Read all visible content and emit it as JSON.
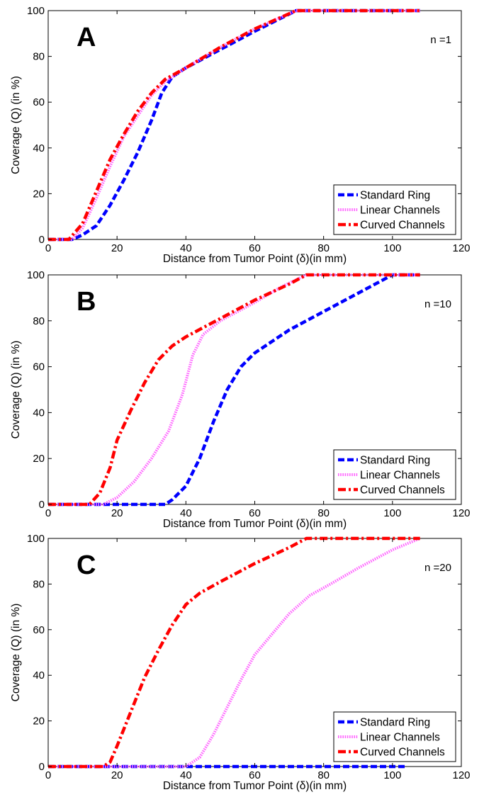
{
  "chart_data": [
    {
      "type": "line",
      "panel_label": "A",
      "annotation": "n =1",
      "xlabel": "Distance from Tumor Point (δ)(in mm)",
      "ylabel": "Coverage (Q) (in %)",
      "xlim": [
        0,
        120
      ],
      "ylim": [
        0,
        100
      ],
      "xticks": [
        0,
        20,
        40,
        60,
        80,
        100,
        120
      ],
      "yticks": [
        0,
        20,
        40,
        60,
        80,
        100
      ],
      "grid": false,
      "legend_position": "bottom-right",
      "series": [
        {
          "name": "Standard Ring",
          "color": "#0000ff",
          "style": "dashed",
          "x": [
            0,
            7,
            10,
            14,
            18,
            22,
            26,
            30,
            33,
            36,
            40,
            50,
            60,
            72,
            108
          ],
          "y": [
            0,
            0,
            2,
            6,
            15,
            26,
            38,
            52,
            64,
            71,
            75,
            83,
            91,
            100,
            100
          ]
        },
        {
          "name": "Linear Channels",
          "color": "#ff66ff",
          "style": "dotted",
          "x": [
            0,
            7,
            10,
            14,
            18,
            22,
            26,
            30,
            34,
            40,
            50,
            60,
            72,
            108
          ],
          "y": [
            0,
            0,
            5,
            18,
            32,
            45,
            54,
            63,
            69,
            75,
            84,
            92,
            100,
            100
          ]
        },
        {
          "name": "Curved Channels",
          "color": "#ff0000",
          "style": "dashdot",
          "x": [
            0,
            6,
            10,
            14,
            18,
            22,
            26,
            30,
            34,
            40,
            50,
            60,
            72,
            108
          ],
          "y": [
            0,
            0,
            7,
            21,
            35,
            46,
            56,
            64,
            70,
            75,
            84,
            92,
            100,
            100
          ]
        }
      ]
    },
    {
      "type": "line",
      "panel_label": "B",
      "annotation": "n =10",
      "xlabel": "Distance from Tumor Point (δ)(in mm)",
      "ylabel": "Coverage (Q) (in %)",
      "xlim": [
        0,
        120
      ],
      "ylim": [
        0,
        100
      ],
      "xticks": [
        0,
        20,
        40,
        60,
        80,
        100,
        120
      ],
      "yticks": [
        0,
        20,
        40,
        60,
        80,
        100
      ],
      "grid": false,
      "legend_position": "bottom-right",
      "series": [
        {
          "name": "Standard Ring",
          "color": "#0000ff",
          "style": "dashed",
          "x": [
            0,
            34,
            36,
            40,
            44,
            48,
            52,
            56,
            60,
            65,
            70,
            80,
            90,
            100,
            108
          ],
          "y": [
            0,
            0,
            2,
            8,
            20,
            36,
            50,
            60,
            66,
            71,
            76,
            84,
            92,
            100,
            100
          ]
        },
        {
          "name": "Linear Channels",
          "color": "#ff66ff",
          "style": "dotted",
          "x": [
            0,
            16,
            20,
            25,
            30,
            35,
            39,
            42,
            45,
            50,
            60,
            68,
            75,
            108
          ],
          "y": [
            0,
            0,
            3,
            10,
            20,
            32,
            48,
            65,
            74,
            80,
            88,
            95,
            100,
            100
          ]
        },
        {
          "name": "Curved Channels",
          "color": "#ff0000",
          "style": "dashdot",
          "x": [
            0,
            12,
            15,
            18,
            20,
            24,
            28,
            32,
            36,
            40,
            45,
            50,
            60,
            70,
            75,
            108
          ],
          "y": [
            0,
            0,
            5,
            16,
            28,
            41,
            53,
            63,
            69,
            73,
            77,
            81,
            89,
            96,
            100,
            100
          ]
        }
      ]
    },
    {
      "type": "line",
      "panel_label": "C",
      "annotation": "n =20",
      "xlabel": "Distance from Tumor Point (δ)(in mm)",
      "ylabel": "Coverage (Q) (in %)",
      "xlim": [
        0,
        120
      ],
      "ylim": [
        0,
        100
      ],
      "xticks": [
        0,
        20,
        40,
        60,
        80,
        100,
        120
      ],
      "yticks": [
        0,
        20,
        40,
        60,
        80,
        100
      ],
      "grid": false,
      "legend_position": "bottom-right",
      "series": [
        {
          "name": "Standard Ring",
          "color": "#0000ff",
          "style": "dashed",
          "x": [
            0,
            104
          ],
          "y": [
            0,
            0
          ]
        },
        {
          "name": "Linear Channels",
          "color": "#ff66ff",
          "style": "dotted",
          "x": [
            0,
            40,
            44,
            48,
            52,
            56,
            60,
            65,
            70,
            76,
            82,
            90,
            100,
            108
          ],
          "y": [
            0,
            0,
            4,
            14,
            26,
            38,
            49,
            58,
            67,
            75,
            80,
            87,
            95,
            100
          ]
        },
        {
          "name": "Curved Channels",
          "color": "#ff0000",
          "style": "dashdot",
          "x": [
            0,
            16,
            18,
            20,
            24,
            28,
            32,
            36,
            40,
            44,
            50,
            60,
            70,
            75,
            108
          ],
          "y": [
            0,
            0,
            2,
            9,
            24,
            39,
            51,
            62,
            71,
            76,
            81,
            89,
            96,
            100,
            100
          ]
        }
      ]
    }
  ]
}
